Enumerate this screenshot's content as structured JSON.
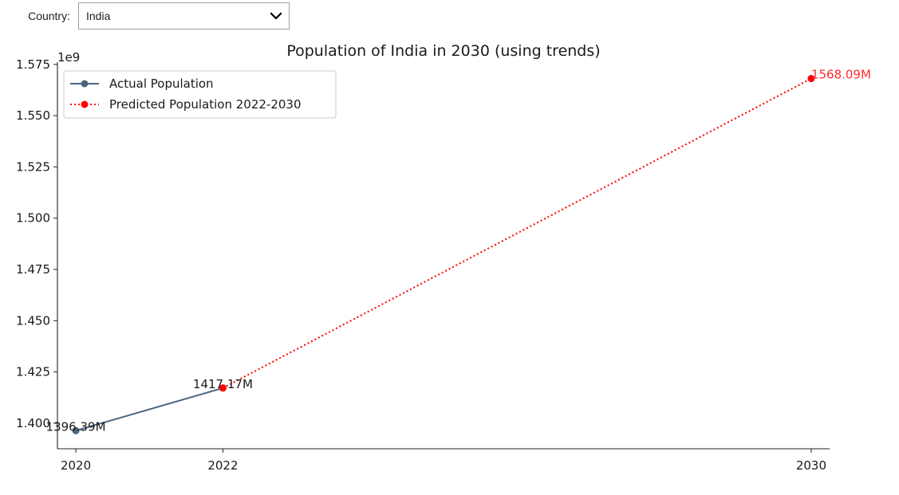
{
  "controls": {
    "country_label": "Country:",
    "country_value": "India"
  },
  "chart_data": {
    "type": "line",
    "title": "Population of India in 2030 (using trends)",
    "xlabel": "",
    "ylabel": "",
    "y_offset_label": "1e9",
    "xlim": [
      2019.75,
      2030.25
    ],
    "ylim": [
      1.38755,
      1.57607
    ],
    "x_ticks": [
      2020,
      2022,
      2030
    ],
    "x_tick_labels": [
      "2020",
      "2022",
      "2030"
    ],
    "y_ticks": [
      1.4,
      1.425,
      1.45,
      1.475,
      1.5,
      1.525,
      1.55,
      1.575
    ],
    "y_tick_labels": [
      "1.400",
      "1.425",
      "1.450",
      "1.475",
      "1.500",
      "1.525",
      "1.550",
      "1.575"
    ],
    "grid": false,
    "legend_position": "top-left",
    "series": [
      {
        "name": "Actual Population",
        "color": "#4c6480",
        "style": "solid",
        "x": [
          2020,
          2022
        ],
        "y": [
          1.39639,
          1.41717
        ],
        "point_labels": [
          "1396.39M",
          "1417.17M"
        ],
        "point_label_color": "#1a1a1a"
      },
      {
        "name": "Predicted Population 2022-2030",
        "color": "#ff0000",
        "style": "dotted",
        "x": [
          2022,
          2030
        ],
        "y": [
          1.41717,
          1.56809
        ],
        "point_labels": [
          "",
          "1568.09M"
        ],
        "point_label_color": "#ff2a2a"
      }
    ]
  }
}
